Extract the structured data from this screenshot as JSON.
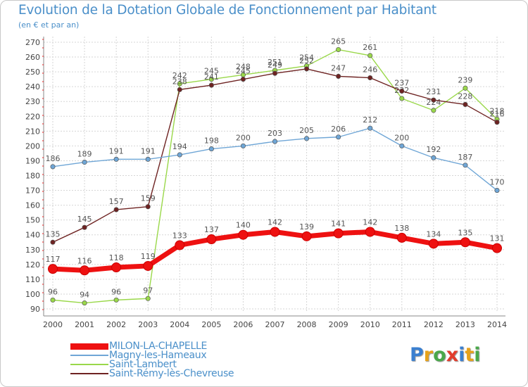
{
  "chart_data": {
    "type": "line",
    "title": "Evolution de la Dotation Globale de Fonctionnement par Habitant",
    "subtitle": "(en € et par an)",
    "xlabel": "",
    "ylabel": "",
    "categories": [
      "2000",
      "2001",
      "2002",
      "2003",
      "2004",
      "2005",
      "2006",
      "2007",
      "2008",
      "2009",
      "2010",
      "2011",
      "2012",
      "2013",
      "2014"
    ],
    "ylim": [
      90,
      270
    ],
    "yticks": [
      "90",
      "100",
      "110",
      "120",
      "130",
      "140",
      "150",
      "160",
      "170",
      "180",
      "190",
      "200",
      "210",
      "220",
      "230",
      "240",
      "250",
      "260",
      "270"
    ],
    "grid": true,
    "series": [
      {
        "name": "Saint-Lambert",
        "color": "#9ad84a",
        "values": [
          96,
          94,
          96,
          97,
          242,
          245,
          248,
          251,
          254,
          265,
          261,
          232,
          224,
          239,
          218
        ],
        "labels": [
          "96",
          "94",
          "96",
          "97",
          "242",
          "245",
          "248",
          "251",
          "254",
          "265",
          "261",
          "232",
          "224",
          "239",
          "218"
        ]
      },
      {
        "name": "Saint-Rémy-lès-Chevreuse",
        "color": "#6e2322",
        "values": [
          135,
          145,
          157,
          159,
          238,
          241,
          245,
          249,
          252,
          247,
          246,
          237,
          231,
          228,
          216
        ],
        "labels": [
          "135",
          "145",
          "157",
          "159",
          "238",
          "241",
          "245",
          "249",
          "252",
          "247",
          "246",
          "237",
          "231",
          "228",
          "216"
        ]
      },
      {
        "name": "Magny-les-Hameaux",
        "color": "#6fa6d6",
        "values": [
          186,
          189,
          191,
          191,
          194,
          198,
          200,
          203,
          205,
          206,
          212,
          200,
          192,
          187,
          170
        ],
        "labels": [
          "186",
          "189",
          "191",
          "191",
          "194",
          "198",
          "200",
          "203",
          "205",
          "206",
          "212",
          "200",
          "192",
          "187",
          "170"
        ]
      },
      {
        "name": "MILON-LA-CHAPELLE",
        "color": "#ee1111",
        "values": [
          117,
          116,
          118,
          119,
          133,
          137,
          140,
          142,
          139,
          141,
          142,
          138,
          134,
          135,
          131
        ],
        "labels": [
          "117",
          "116",
          "118",
          "119",
          "133",
          "137",
          "140",
          "142",
          "139",
          "141",
          "142",
          "138",
          "134",
          "135",
          "131"
        ]
      }
    ]
  },
  "legend": [
    {
      "label": "MILON-LA-CHAPELLE",
      "color": "#ee1111"
    },
    {
      "label": "Magny-les-Hameaux",
      "color": "#6fa6d6"
    },
    {
      "label": "Saint-Lambert",
      "color": "#9ad84a"
    },
    {
      "label": "Saint-Rémy-lès-Chevreuse",
      "color": "#6e2322"
    }
  ],
  "logo": {
    "letters": [
      "P",
      "r",
      "o",
      "x",
      "i",
      "t",
      "i"
    ],
    "colors": [
      "#3a7fd0",
      "#e7a21a",
      "#4aa84a",
      "#e23c2c",
      "#3a7fd0",
      "#e7a21a",
      "#4aa84a"
    ]
  }
}
